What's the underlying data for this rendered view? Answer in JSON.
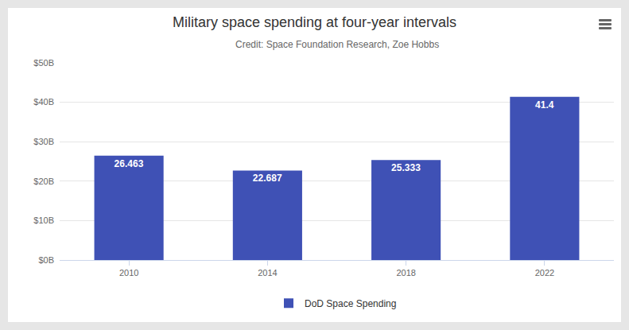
{
  "chart_data": {
    "type": "bar",
    "title": "Military space spending at four-year intervals",
    "subtitle": "Credit: Space Foundation Research, Zoe Hobbs",
    "categories": [
      "2010",
      "2014",
      "2018",
      "2022"
    ],
    "series": [
      {
        "name": "DoD Space Spending",
        "color": "#3f51b5",
        "values": [
          26.463,
          22.687,
          25.333,
          41.4
        ]
      }
    ],
    "ylim": [
      0,
      50
    ],
    "yticks": [
      {
        "value": 0,
        "label": "$0B"
      },
      {
        "value": 10,
        "label": "$10B"
      },
      {
        "value": 20,
        "label": "$20B"
      },
      {
        "value": 30,
        "label": "$30B"
      },
      {
        "value": 40,
        "label": "$40B"
      },
      {
        "value": 50,
        "label": "$50B"
      }
    ],
    "grid": true,
    "legend": "bottom",
    "data_labels": true
  }
}
